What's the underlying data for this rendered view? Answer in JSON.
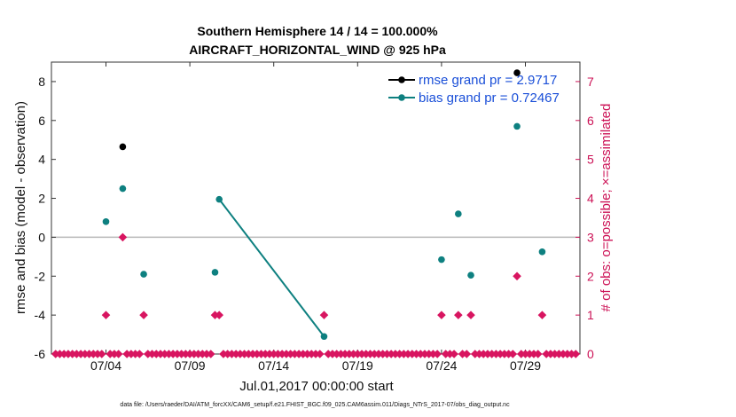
{
  "chart_data": {
    "type": "scatter",
    "title_line1": "Southern Hemisphere 14 / 14 = 100.000%",
    "title_line2": "AIRCRAFT_HORIZONTAL_WIND @ 925 hPa",
    "ylabel_left": "rmse and bias (model - observation)",
    "ylabel_right": "# of obs: o=possible; ×=assimilated",
    "xlabel": "Jul.01,2017 00:00:00 start",
    "footnote": "data file: /Users/raeder/DAI/ATM_forcXX/CAM6_setup/f.e21.FHIST_BGC.f09_025.CAM6assim.011/Diags_NTrS_2017-07/obs_diag_output.nc",
    "xlim": [
      0.75,
      32.25
    ],
    "ylim_left": [
      -6,
      9
    ],
    "ylim_right": [
      0,
      7.5
    ],
    "x_ticks": [
      {
        "value": 4,
        "label": "07/04"
      },
      {
        "value": 9,
        "label": "07/09"
      },
      {
        "value": 14,
        "label": "07/14"
      },
      {
        "value": 19,
        "label": "07/19"
      },
      {
        "value": 24,
        "label": "07/24"
      },
      {
        "value": 29,
        "label": "07/29"
      }
    ],
    "y_ticks_left": [
      {
        "value": -6,
        "label": "-6"
      },
      {
        "value": -4,
        "label": "-4"
      },
      {
        "value": -2,
        "label": "-2"
      },
      {
        "value": 0,
        "label": "0"
      },
      {
        "value": 2,
        "label": "2"
      },
      {
        "value": 4,
        "label": "4"
      },
      {
        "value": 6,
        "label": "6"
      },
      {
        "value": 8,
        "label": "8"
      }
    ],
    "y_ticks_right": [
      {
        "value": 0,
        "label": "0"
      },
      {
        "value": 1,
        "label": "1"
      },
      {
        "value": 2,
        "label": "2"
      },
      {
        "value": 3,
        "label": "3"
      },
      {
        "value": 4,
        "label": "4"
      },
      {
        "value": 5,
        "label": "5"
      },
      {
        "value": 6,
        "label": "6"
      },
      {
        "value": 7,
        "label": "7"
      }
    ],
    "series": [
      {
        "name": "rmse",
        "legend": "rmse grand pr = 2.9717",
        "color": "#000000",
        "points": [
          [
            5.0,
            4.65
          ],
          [
            28.5,
            8.45
          ]
        ],
        "segments": []
      },
      {
        "name": "bias",
        "legend": "bias grand pr = 0.72467",
        "color": "#0e8080",
        "points": [
          [
            4.0,
            0.8
          ],
          [
            5.0,
            2.5
          ],
          [
            6.25,
            -1.9
          ],
          [
            10.5,
            -1.8
          ],
          [
            10.75,
            1.95
          ],
          [
            17.0,
            -5.1
          ],
          [
            24.0,
            -1.15
          ],
          [
            25.0,
            1.2
          ],
          [
            25.75,
            -1.95
          ],
          [
            28.5,
            5.7
          ],
          [
            30.0,
            -0.75
          ]
        ],
        "segments": [
          [
            4,
            5
          ]
        ]
      },
      {
        "name": "obs_count",
        "axis": "right",
        "color": "#d81560",
        "points": [
          [
            4.0,
            1
          ],
          [
            5.0,
            3
          ],
          [
            6.25,
            1
          ],
          [
            10.5,
            1
          ],
          [
            10.75,
            1
          ],
          [
            17.0,
            1
          ],
          [
            24.0,
            1
          ],
          [
            25.0,
            1
          ],
          [
            25.75,
            1
          ],
          [
            28.5,
            2
          ],
          [
            30.0,
            1
          ]
        ],
        "zero_days": [
          1,
          2,
          3,
          4,
          5,
          6,
          7,
          8,
          9,
          10,
          11,
          12,
          13,
          14,
          15,
          16,
          17,
          18,
          19,
          20,
          21,
          22,
          23,
          24,
          25,
          26,
          27,
          28,
          29,
          30,
          31,
          32
        ],
        "zero_step": 0.25
      }
    ]
  }
}
